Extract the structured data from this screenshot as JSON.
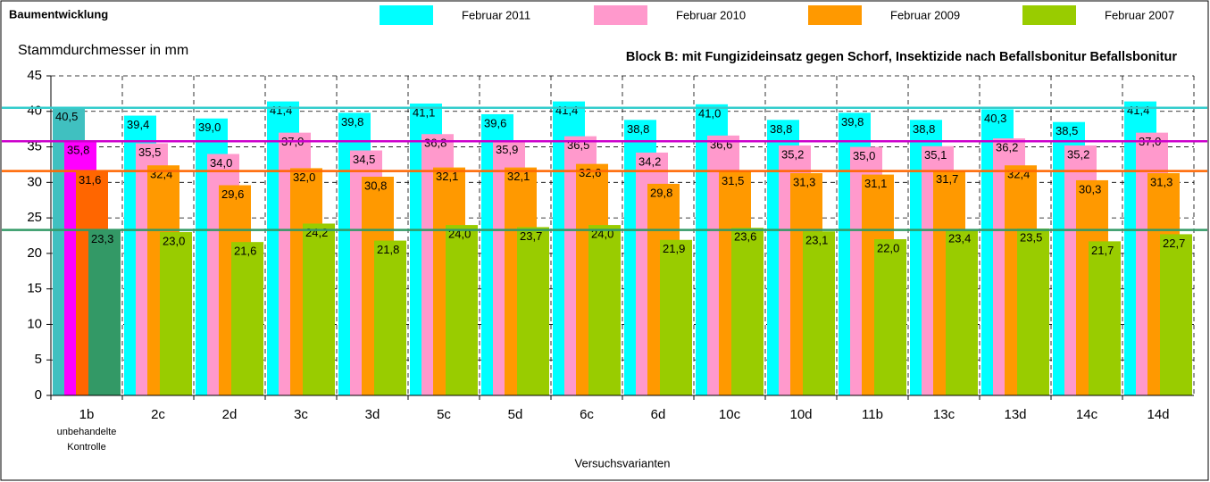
{
  "chart_data": {
    "type": "bar",
    "title": "Baumentwicklung",
    "subtitle": "Block B: mit Fungizideinsatz gegen Schorf, Insektizide nach Befallsbonitur Befallsbonitur",
    "y_label": "Stammdurchmesser in mm",
    "x_label": "Versuchsvarianten",
    "annotation": "unbehandelte Kontrolle",
    "categories": [
      "1b",
      "2c",
      "2d",
      "3c",
      "3d",
      "5c",
      "5d",
      "6c",
      "6d",
      "10c",
      "10d",
      "11b",
      "13c",
      "13d",
      "14c",
      "14d"
    ],
    "series": [
      {
        "name": "Februar 2011",
        "color": "#00ffff",
        "highlight_color": "#40c0c0",
        "values": [
          40.5,
          39.4,
          39.0,
          41.4,
          39.8,
          41.1,
          39.6,
          41.4,
          38.8,
          41.0,
          38.8,
          39.8,
          38.8,
          40.3,
          38.5,
          41.4
        ],
        "value_labels": [
          "40,5",
          "39,4",
          "39,0",
          "41,4",
          "39,8",
          "41,1",
          "39,6",
          "41,4",
          "38,8",
          "41,0",
          "38,8",
          "39,8",
          "38,8",
          "40,3",
          "38,5",
          "41,4"
        ]
      },
      {
        "name": "Februar 2010",
        "color": "#ff99cc",
        "highlight_color": "#ff00ff",
        "values": [
          35.8,
          35.5,
          34.0,
          37.0,
          34.5,
          36.8,
          35.9,
          36.5,
          34.2,
          36.6,
          35.2,
          35.0,
          35.1,
          36.2,
          35.2,
          37.0
        ],
        "value_labels": [
          "35,8",
          "35,5",
          "34,0",
          "37,0",
          "34,5",
          "36,8",
          "35,9",
          "36,5",
          "34,2",
          "36,6",
          "35,2",
          "35,0",
          "35,1",
          "36,2",
          "35,2",
          "37,0"
        ]
      },
      {
        "name": "Februar 2009",
        "color": "#ff9900",
        "highlight_color": "#ff6600",
        "values": [
          31.6,
          32.4,
          29.6,
          32.0,
          30.8,
          32.1,
          32.1,
          32.6,
          29.8,
          31.5,
          31.3,
          31.1,
          31.7,
          32.4,
          30.3,
          31.3
        ],
        "value_labels": [
          "31,6",
          "32,4",
          "29,6",
          "32,0",
          "30,8",
          "32,1",
          "32,1",
          "32,6",
          "29,8",
          "31,5",
          "31,3",
          "31,1",
          "31,7",
          "32,4",
          "30,3",
          "31,3"
        ]
      },
      {
        "name": "Februar 2007",
        "color": "#99cc00",
        "highlight_color": "#339966",
        "values": [
          23.3,
          23.0,
          21.6,
          24.2,
          21.8,
          24.0,
          23.7,
          24.0,
          21.9,
          23.6,
          23.1,
          22.0,
          23.4,
          23.5,
          21.7,
          22.7
        ],
        "value_labels": [
          "23,3",
          "23,0",
          "21,6",
          "24,2",
          "21,8",
          "24,0",
          "23,7",
          "24,0",
          "21,9",
          "23,6",
          "23,1",
          "22,0",
          "23,4",
          "23,5",
          "21,7",
          "22,7"
        ]
      }
    ],
    "reference_line_colors": [
      "#33cccc",
      "#cc00cc",
      "#ff6600",
      "#339966"
    ],
    "ylim": [
      0,
      45
    ],
    "yticks": [
      0,
      5,
      10,
      15,
      20,
      25,
      30,
      35,
      40,
      45
    ],
    "grid": true
  }
}
